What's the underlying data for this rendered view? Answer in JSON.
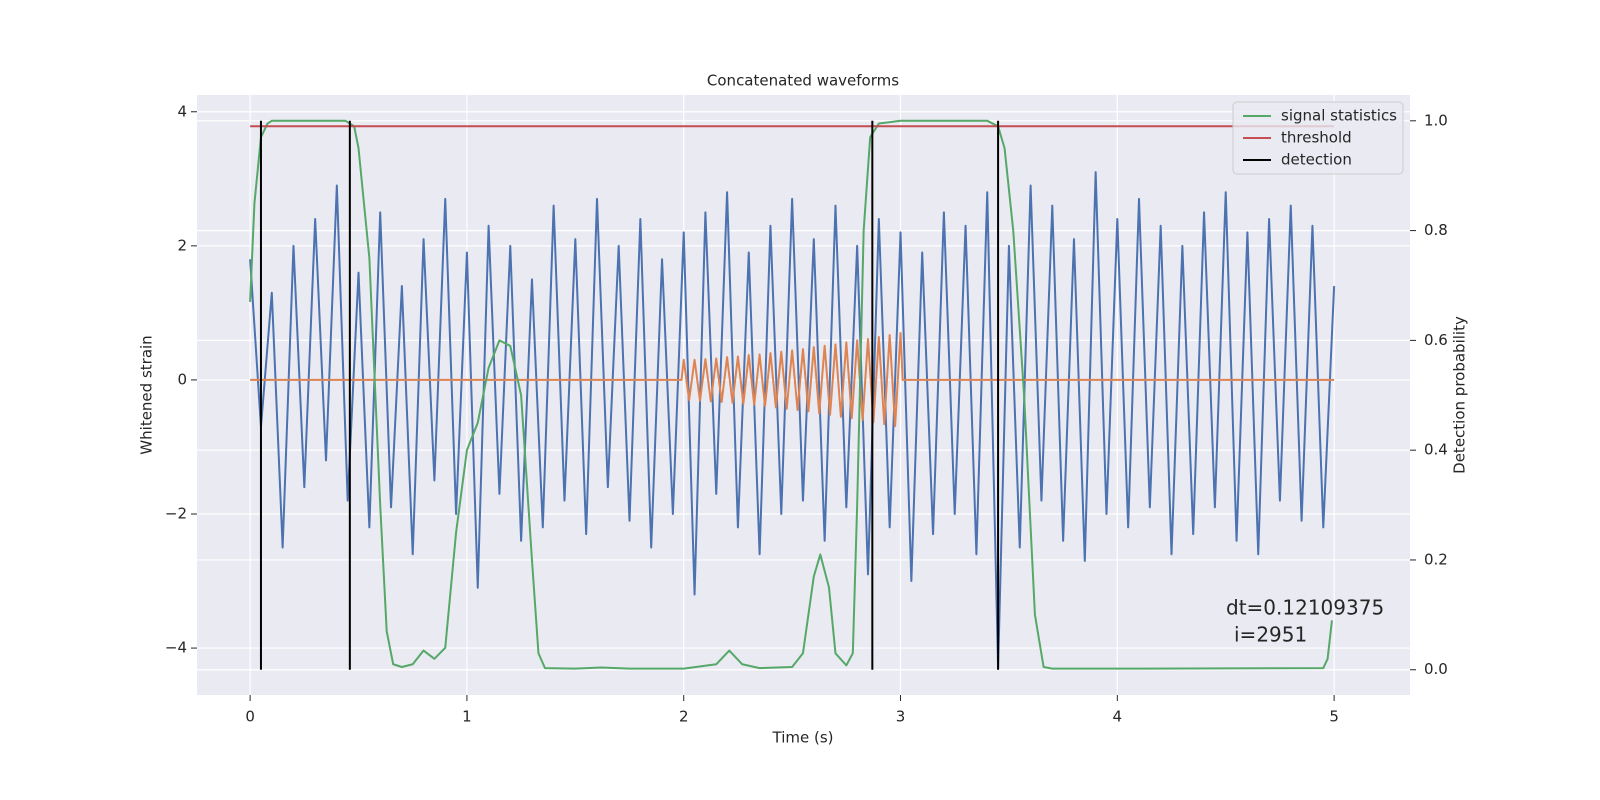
{
  "chart_data": {
    "type": "line",
    "title": "Concatenated waveforms",
    "xlabel": "Time (s)",
    "ylabel": "Whitened strain",
    "y2label": "Detection probability",
    "xlim": [
      -0.245,
      5.35
    ],
    "xticks": [
      0,
      1,
      2,
      3,
      4,
      5
    ],
    "ylim": [
      -4.7,
      4.25
    ],
    "yticks": [
      {
        "value": -4,
        "label": "−4"
      },
      {
        "value": -2,
        "label": "−2"
      },
      0,
      2,
      4
    ],
    "y2lim": [
      -0.046,
      1.047
    ],
    "y2ticks": [
      {
        "value": 0,
        "label": "0.0"
      },
      0.2,
      0.4,
      0.6,
      0.8,
      {
        "value": 1,
        "label": "1.0"
      }
    ],
    "grid": true,
    "legend": "upper right",
    "annotation": [
      "dt=0.12109375",
      "i=2951"
    ],
    "series": [
      {
        "color": "#4c72b0",
        "x": [
          0,
          0.05,
          0.1,
          0.15,
          0.2,
          0.25,
          0.3,
          0.35,
          0.4,
          0.45,
          0.5,
          0.55,
          0.6,
          0.65,
          0.7,
          0.75,
          0.8,
          0.85,
          0.9,
          0.95,
          1.0,
          1.05,
          1.1,
          1.15,
          1.2,
          1.25,
          1.3,
          1.35,
          1.4,
          1.45,
          1.5,
          1.55,
          1.6,
          1.65,
          1.7,
          1.75,
          1.8,
          1.85,
          1.9,
          1.95,
          2.0,
          2.05,
          2.1,
          2.15,
          2.2,
          2.25,
          2.3,
          2.35,
          2.4,
          2.45,
          2.5,
          2.55,
          2.6,
          2.65,
          2.7,
          2.75,
          2.8,
          2.85,
          2.9,
          2.95,
          3.0,
          3.05,
          3.1,
          3.15,
          3.2,
          3.25,
          3.3,
          3.35,
          3.4,
          3.45,
          3.5,
          3.55,
          3.6,
          3.65,
          3.7,
          3.75,
          3.8,
          3.85,
          3.9,
          3.95,
          4.0,
          4.05,
          4.1,
          4.15,
          4.2,
          4.25,
          4.3,
          4.35,
          4.4,
          4.45,
          4.5,
          4.55,
          4.6,
          4.65,
          4.7,
          4.75,
          4.8,
          4.85,
          4.9,
          4.95,
          5.0
        ],
        "values": [
          1.8,
          -0.7,
          1.3,
          -2.5,
          2.0,
          -1.6,
          2.4,
          -1.2,
          2.9,
          -1.8,
          1.6,
          -2.2,
          2.5,
          -1.9,
          1.4,
          -2.6,
          2.1,
          -1.5,
          2.7,
          -2.0,
          1.9,
          -3.1,
          2.3,
          -1.7,
          2.0,
          -2.4,
          1.5,
          -2.2,
          2.6,
          -1.8,
          2.1,
          -2.3,
          2.7,
          -1.6,
          2.0,
          -2.1,
          2.4,
          -2.5,
          1.8,
          -2.0,
          2.2,
          -3.2,
          2.5,
          -1.7,
          2.8,
          -2.2,
          1.9,
          -2.6,
          2.3,
          -2.0,
          2.7,
          -1.8,
          2.1,
          -2.4,
          2.6,
          -1.9,
          2.0,
          -2.9,
          2.4,
          -2.2,
          2.2,
          -3.0,
          1.9,
          -2.3,
          2.5,
          -2.0,
          2.3,
          -2.6,
          2.8,
          -4.3,
          2.0,
          -2.5,
          2.9,
          -1.8,
          2.6,
          -2.4,
          2.1,
          -2.7,
          3.1,
          -2.0,
          2.4,
          -2.2,
          2.7,
          -1.9,
          2.3,
          -2.6,
          2.0,
          -2.3,
          2.5,
          -1.9,
          2.8,
          -2.4,
          2.2,
          -2.6,
          2.4,
          -1.8,
          2.6,
          -2.1,
          2.3,
          -2.2,
          1.4
        ]
      },
      {
        "color": "#dd8452",
        "x": [
          0,
          1.99,
          2.0,
          2.025,
          2.05,
          2.075,
          2.1,
          2.125,
          2.15,
          2.175,
          2.2,
          2.225,
          2.25,
          2.275,
          2.3,
          2.325,
          2.35,
          2.375,
          2.4,
          2.425,
          2.45,
          2.475,
          2.5,
          2.525,
          2.55,
          2.575,
          2.6,
          2.625,
          2.65,
          2.675,
          2.7,
          2.725,
          2.75,
          2.775,
          2.8,
          2.825,
          2.85,
          2.875,
          2.9,
          2.925,
          2.95,
          2.975,
          3.0,
          3.01,
          5.0
        ],
        "values": [
          0,
          0,
          0.3,
          -0.3,
          0.3,
          -0.31,
          0.31,
          -0.32,
          0.32,
          -0.33,
          0.34,
          -0.34,
          0.35,
          -0.36,
          0.37,
          -0.37,
          0.38,
          -0.39,
          0.4,
          -0.41,
          0.42,
          -0.43,
          0.44,
          -0.45,
          0.46,
          -0.47,
          0.49,
          -0.5,
          0.51,
          -0.52,
          0.53,
          -0.55,
          0.56,
          -0.57,
          0.59,
          -0.6,
          0.61,
          -0.63,
          0.64,
          -0.66,
          0.67,
          -0.69,
          0.7,
          0,
          0
        ]
      },
      {
        "name": "signal statistics",
        "color": "#55a868",
        "axis": "y2",
        "x": [
          0,
          0.02,
          0.05,
          0.08,
          0.1,
          0.3,
          0.44,
          0.48,
          0.5,
          0.55,
          0.6,
          0.63,
          0.66,
          0.7,
          0.75,
          0.8,
          0.85,
          0.9,
          0.95,
          1.0,
          1.05,
          1.1,
          1.15,
          1.2,
          1.25,
          1.3,
          1.33,
          1.36,
          1.5,
          1.62,
          1.75,
          2.0,
          2.15,
          2.21,
          2.27,
          2.35,
          2.5,
          2.55,
          2.6,
          2.63,
          2.67,
          2.7,
          2.75,
          2.78,
          2.8,
          2.83,
          2.86,
          2.9,
          3.0,
          3.4,
          3.45,
          3.48,
          3.52,
          3.57,
          3.62,
          3.66,
          3.7,
          4.0,
          4.95,
          4.97,
          4.99
        ],
        "values": [
          0.67,
          0.85,
          0.97,
          0.995,
          1.0,
          1.0,
          1.0,
          0.99,
          0.95,
          0.75,
          0.3,
          0.07,
          0.01,
          0.005,
          0.01,
          0.035,
          0.02,
          0.04,
          0.25,
          0.4,
          0.45,
          0.55,
          0.6,
          0.59,
          0.5,
          0.2,
          0.03,
          0.003,
          0.002,
          0.004,
          0.002,
          0.002,
          0.01,
          0.035,
          0.01,
          0.003,
          0.005,
          0.03,
          0.17,
          0.21,
          0.15,
          0.03,
          0.008,
          0.03,
          0.3,
          0.8,
          0.97,
          0.995,
          1.0,
          1.0,
          0.99,
          0.95,
          0.8,
          0.5,
          0.1,
          0.005,
          0.002,
          0.002,
          0.003,
          0.02,
          0.09
        ]
      },
      {
        "name": "threshold",
        "color": "#c44e52",
        "axis": "y2",
        "x": [
          0,
          5
        ],
        "values": [
          0.99,
          0.99
        ]
      },
      {
        "name": "detection",
        "color": "#000000",
        "axis": "y2",
        "mark": "vline",
        "x": [
          0.05,
          0.46,
          2.87,
          3.45
        ],
        "values": [
          1,
          1,
          1,
          1
        ]
      }
    ]
  }
}
